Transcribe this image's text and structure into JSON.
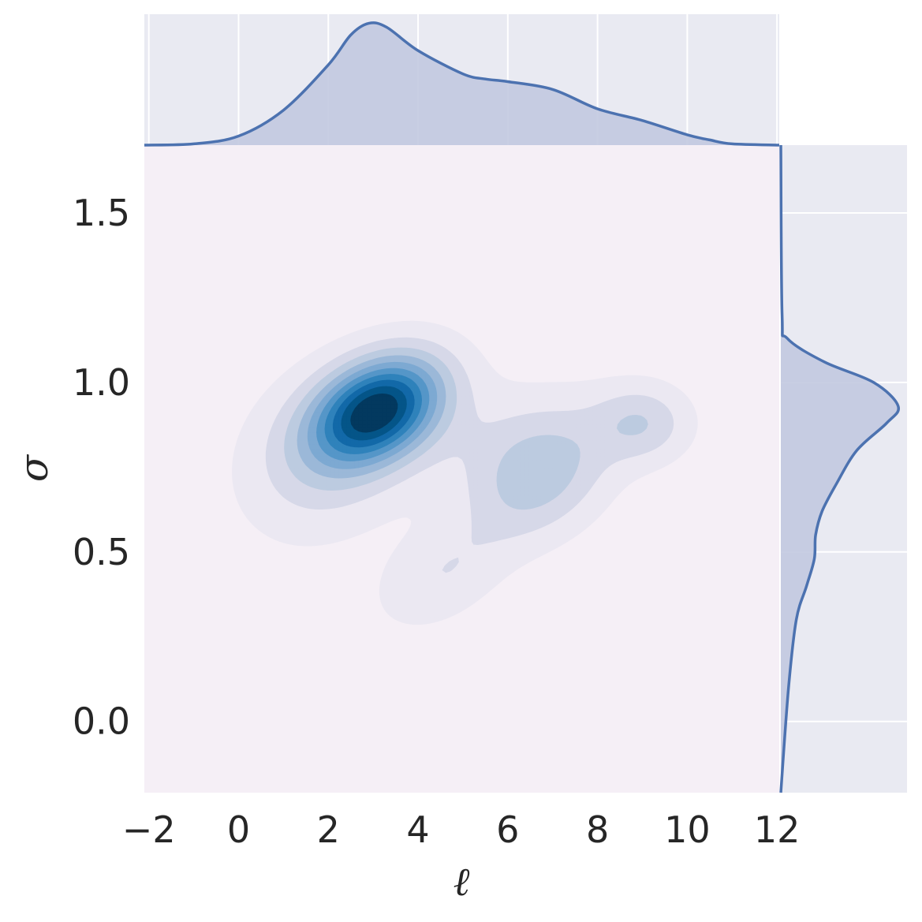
{
  "chart_data": {
    "type": "kde-joint",
    "xlabel": "ℓ",
    "ylabel": "σ",
    "xlim": [
      -2.1,
      12.05
    ],
    "ylim": [
      -0.21,
      1.7
    ],
    "x_ticks": [
      {
        "value": -2,
        "label": "−2"
      },
      {
        "value": 0,
        "label": "0"
      },
      {
        "value": 2,
        "label": "2"
      },
      {
        "value": 4,
        "label": "4"
      },
      {
        "value": 6,
        "label": "6"
      },
      {
        "value": 8,
        "label": "8"
      },
      {
        "value": 10,
        "label": "10"
      },
      {
        "value": 12,
        "label": "12"
      }
    ],
    "y_ticks": [
      {
        "value": 0.0,
        "label": "0.0"
      },
      {
        "value": 0.5,
        "label": "0.5"
      },
      {
        "value": 1.0,
        "label": "1.0"
      },
      {
        "value": 1.5,
        "label": "1.5"
      }
    ],
    "joint_density": {
      "colormap": [
        "#ebe8f2",
        "#d6d8e8",
        "#bccbe0",
        "#9bb8d8",
        "#7da9d2",
        "#5596c8",
        "#2f82bb",
        "#1269a8",
        "#045588",
        "#03395f"
      ],
      "background": "#f5eff6",
      "levels": 10,
      "components": [
        {
          "x": 3.1,
          "y": 0.92,
          "sx": 1.0,
          "sy": 0.11,
          "rho": 0.35,
          "weight": 1.0
        },
        {
          "x": 1.9,
          "y": 0.78,
          "sx": 1.3,
          "sy": 0.17,
          "rho": 0.2,
          "weight": 0.22
        },
        {
          "x": 6.7,
          "y": 0.72,
          "sx": 1.1,
          "sy": 0.13,
          "rho": 0.3,
          "weight": 0.33
        },
        {
          "x": 9.0,
          "y": 0.88,
          "sx": 0.75,
          "sy": 0.08,
          "rho": 0.0,
          "weight": 0.25
        },
        {
          "x": 4.5,
          "y": 0.43,
          "sx": 1.0,
          "sy": 0.11,
          "rho": 0.4,
          "weight": 0.16
        },
        {
          "x": 5.5,
          "y": 0.85,
          "sx": 1.6,
          "sy": 0.12,
          "rho": 0.2,
          "weight": 0.1
        }
      ]
    },
    "x_marginal": {
      "x": [
        -2.1,
        -1.0,
        0.0,
        1.0,
        2.0,
        2.5,
        2.9,
        3.3,
        4.0,
        5.0,
        5.5,
        6.0,
        7.0,
        8.0,
        9.0,
        10.0,
        10.5,
        11.0,
        12.05
      ],
      "density": [
        0.0,
        0.01,
        0.07,
        0.27,
        0.62,
        0.85,
        0.94,
        0.91,
        0.73,
        0.55,
        0.51,
        0.49,
        0.43,
        0.28,
        0.19,
        0.08,
        0.04,
        0.01,
        0.0
      ],
      "fill": "#c2c9e0",
      "line": "#4c72b0"
    },
    "y_marginal": {
      "y": [
        -0.21,
        0.1,
        0.3,
        0.4,
        0.48,
        0.55,
        0.62,
        0.7,
        0.8,
        0.88,
        0.93,
        1.0,
        1.06,
        1.13,
        1.2,
        1.7
      ],
      "density": [
        0.0,
        0.06,
        0.12,
        0.2,
        0.26,
        0.27,
        0.32,
        0.43,
        0.59,
        0.82,
        0.91,
        0.72,
        0.34,
        0.05,
        0.01,
        0.0
      ],
      "fill": "#c2c9e0",
      "line": "#4c72b0"
    },
    "marginal_background": "#e9eaf2",
    "gridline_color": "#ffffff",
    "grid": true
  }
}
